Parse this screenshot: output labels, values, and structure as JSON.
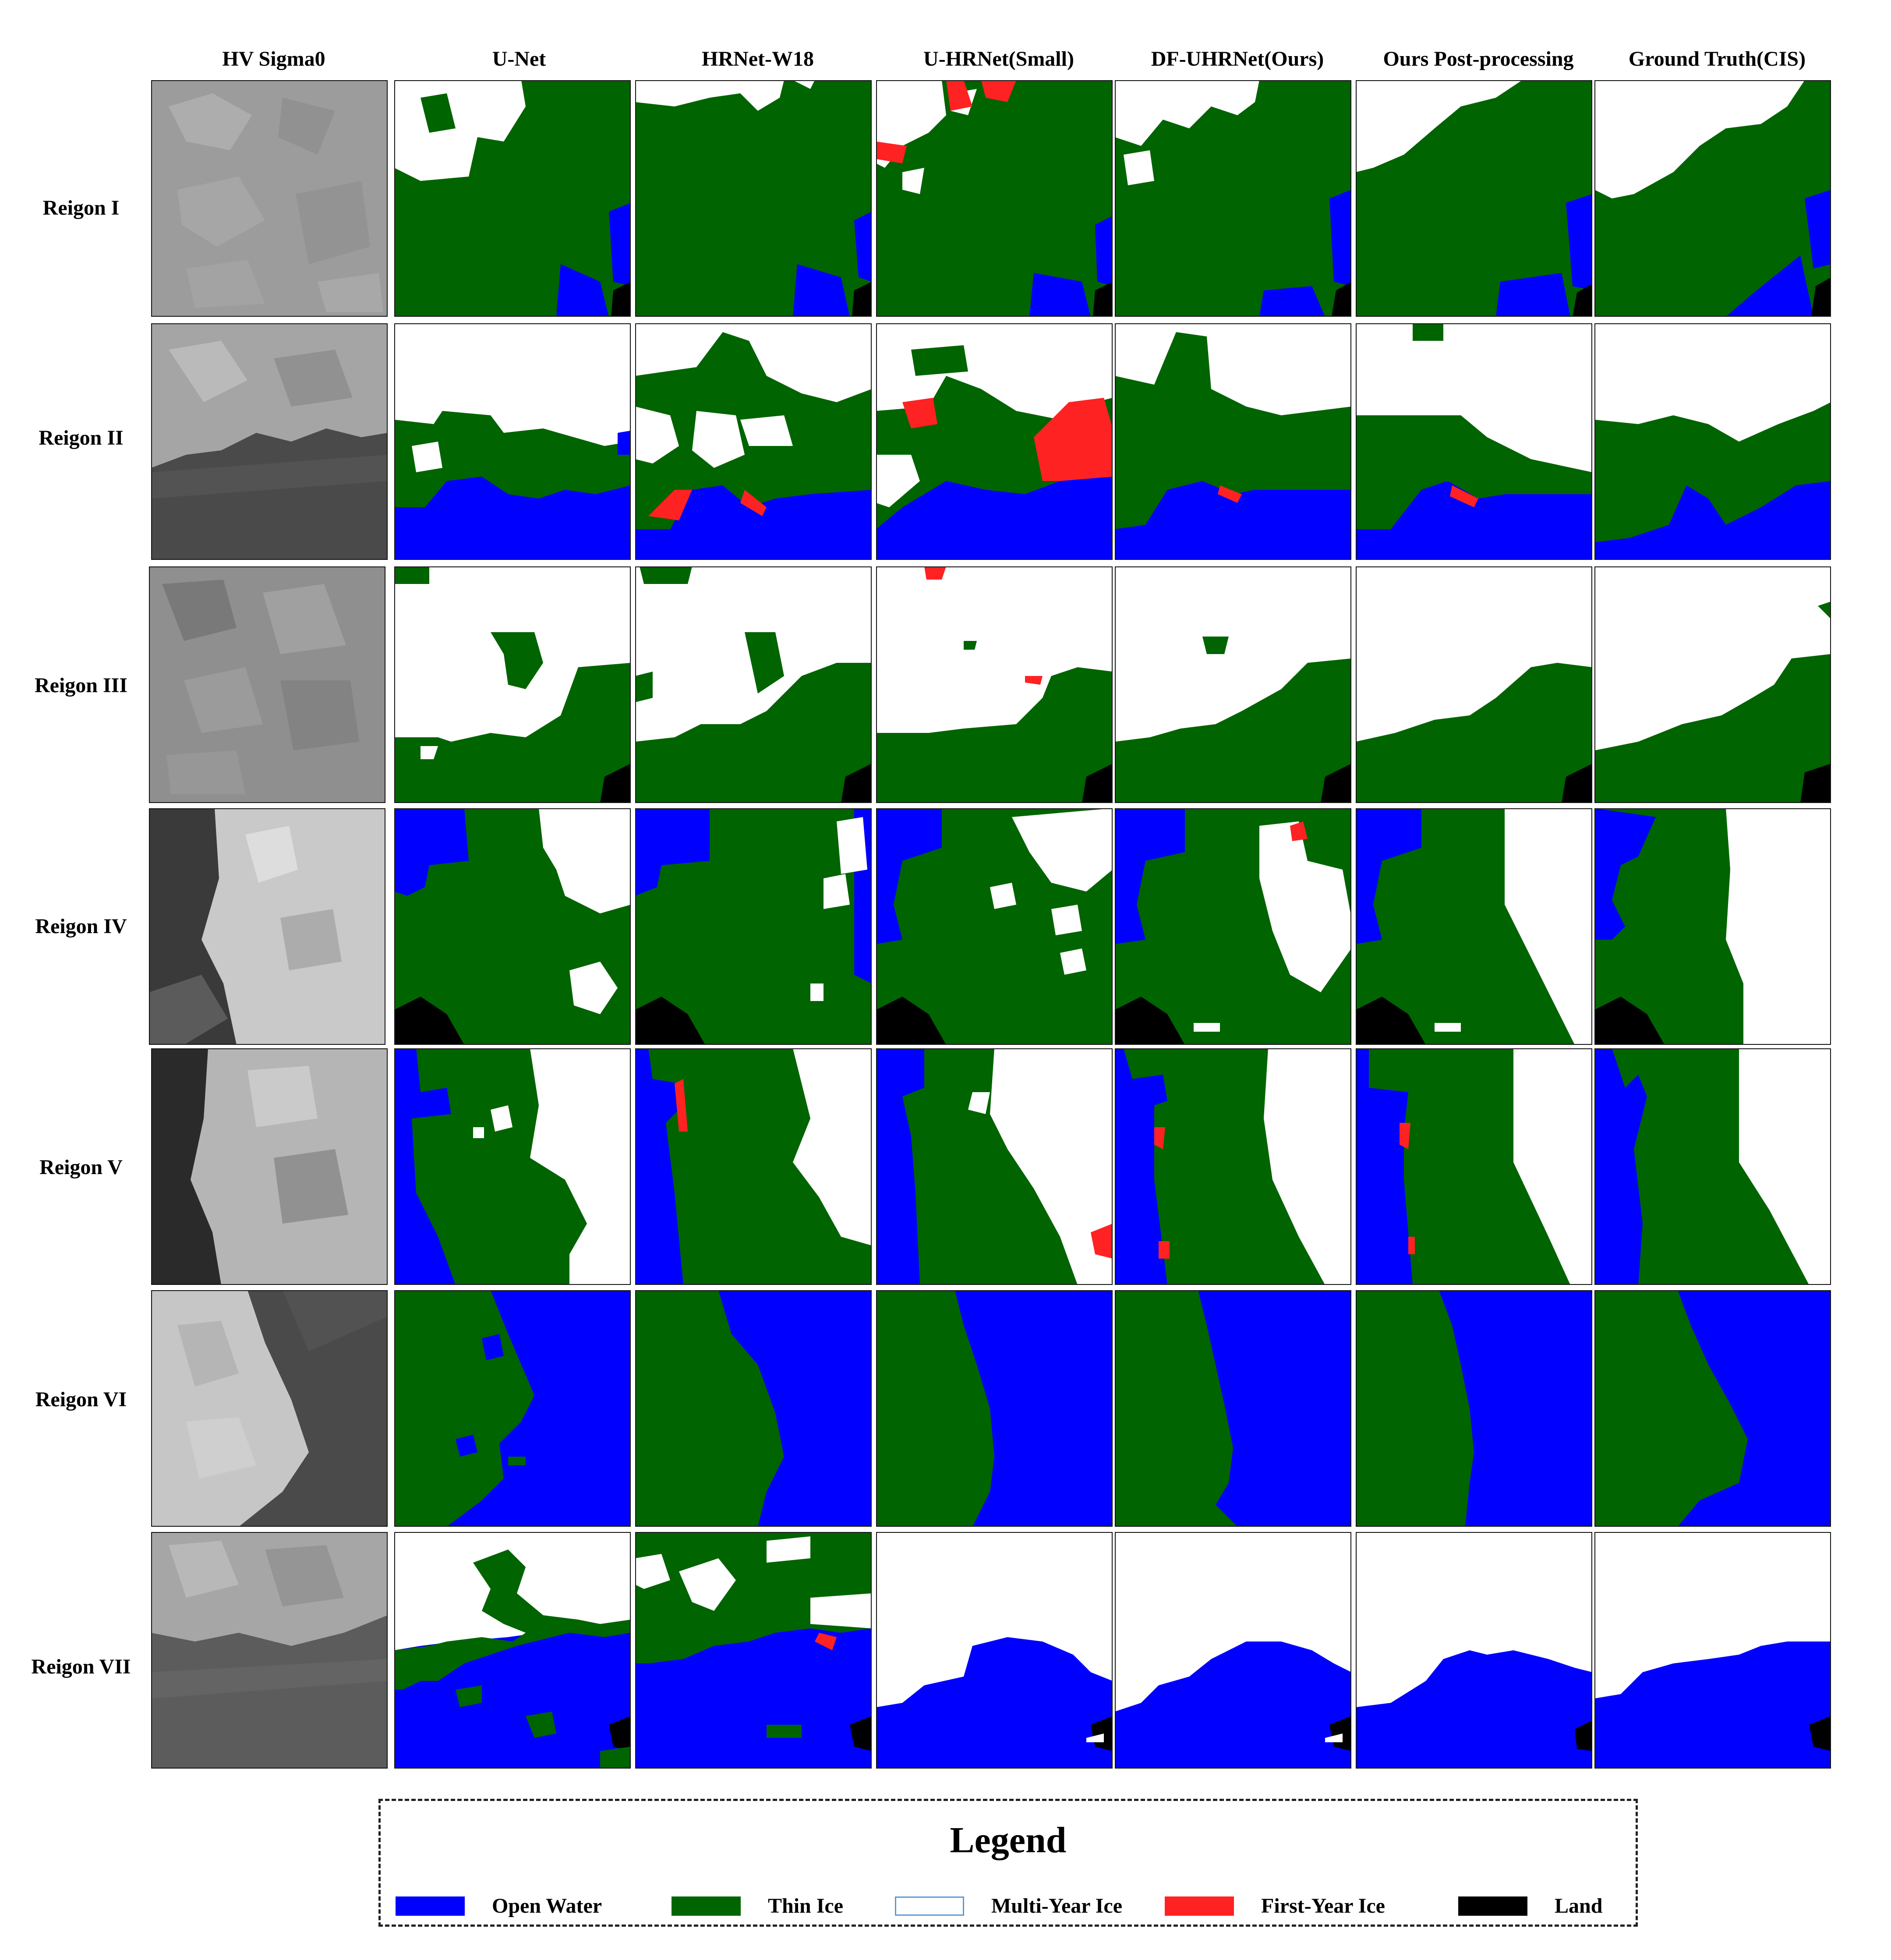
{
  "figure": {
    "columns": [
      {
        "label": "HV Sigma0"
      },
      {
        "label": "U-Net"
      },
      {
        "label": "HRNet-W18"
      },
      {
        "label": "U-HRNet(Small)"
      },
      {
        "label": "DF-UHRNet(Ours)"
      },
      {
        "label": "Ours Post-processing"
      },
      {
        "label": "Ground Truth(CIS)"
      }
    ],
    "rows": [
      {
        "label": "Reigon I"
      },
      {
        "label": "Reigon II"
      },
      {
        "label": "Reigon III"
      },
      {
        "label": "Reigon IV"
      },
      {
        "label": "Reigon V"
      },
      {
        "label": "Reigon VI"
      },
      {
        "label": "Reigon VII"
      }
    ],
    "colors": {
      "open_water": "#0000ff",
      "thin_ice": "#006400",
      "multi_year_ice": "#ffffff",
      "first_year_ice": "#ff2222",
      "land": "#000000",
      "multi_year_ice_border": "#5b9bd5"
    }
  },
  "legend": {
    "title": "Legend",
    "items": [
      {
        "label": "Open Water",
        "color": "#0000ff"
      },
      {
        "label": "Thin Ice",
        "color": "#006400"
      },
      {
        "label": "Multi-Year Ice",
        "color": "#ffffff"
      },
      {
        "label": "First-Year Ice",
        "color": "#ff2222"
      },
      {
        "label": "Land",
        "color": "#000000"
      }
    ]
  }
}
